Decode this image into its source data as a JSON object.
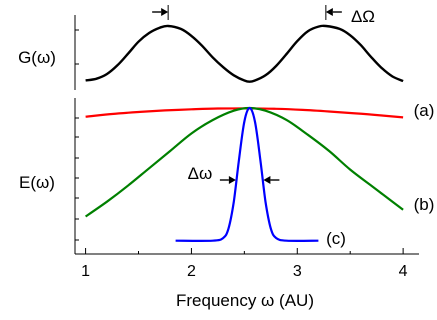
{
  "chart_data": [
    {
      "type": "line",
      "panel": "top",
      "ylabel": "G(ω)",
      "xlim": [
        0.9,
        4.15
      ],
      "ylim": [
        0.0,
        1.0
      ],
      "annotation": "ΔΩ",
      "series": [
        {
          "color": "#000000",
          "x": [
            1.0,
            1.1,
            1.2,
            1.3,
            1.4,
            1.5,
            1.6,
            1.7,
            1.78,
            1.9,
            2.0,
            2.1,
            2.2,
            2.3,
            2.4,
            2.5,
            2.55,
            2.6,
            2.7,
            2.8,
            2.9,
            3.0,
            3.1,
            3.2,
            3.27,
            3.4,
            3.5,
            3.6,
            3.7,
            3.8,
            3.9,
            4.0
          ],
          "values": [
            0.06,
            0.09,
            0.17,
            0.32,
            0.52,
            0.73,
            0.88,
            0.97,
            1.0,
            0.95,
            0.83,
            0.66,
            0.46,
            0.29,
            0.15,
            0.06,
            0.04,
            0.06,
            0.15,
            0.31,
            0.52,
            0.74,
            0.91,
            0.99,
            1.0,
            0.95,
            0.84,
            0.67,
            0.46,
            0.27,
            0.13,
            0.05
          ]
        }
      ]
    },
    {
      "type": "line",
      "panel": "bottom",
      "xlabel": "Frequency ω (AU)",
      "ylabel": "E(ω)",
      "xlim": [
        0.9,
        4.15
      ],
      "xticks": [
        "1",
        "2",
        "3",
        "4"
      ],
      "ylim": [
        0.0,
        1.0
      ],
      "annotation": "Δω",
      "series": [
        {
          "name": "(a)",
          "color": "#ff0000",
          "x": [
            1.0,
            1.25,
            1.5,
            1.75,
            2.0,
            2.25,
            2.55,
            2.8,
            3.05,
            3.3,
            3.55,
            3.8,
            4.0
          ],
          "values": [
            0.935,
            0.955,
            0.97,
            0.982,
            0.99,
            0.996,
            0.997,
            0.994,
            0.986,
            0.974,
            0.96,
            0.944,
            0.93
          ]
        },
        {
          "name": "(b)",
          "color": "#008000",
          "x": [
            1.0,
            1.2,
            1.4,
            1.6,
            1.8,
            2.0,
            2.2,
            2.4,
            2.55,
            2.7,
            2.9,
            3.1,
            3.3,
            3.5,
            3.7,
            3.9,
            4.0
          ],
          "values": [
            0.19,
            0.3,
            0.42,
            0.55,
            0.68,
            0.81,
            0.91,
            0.98,
            1.0,
            0.98,
            0.91,
            0.8,
            0.68,
            0.54,
            0.42,
            0.3,
            0.24
          ]
        },
        {
          "name": "(c)",
          "color": "#0000ff",
          "x": [
            1.85,
            2.2,
            2.3,
            2.35,
            2.4,
            2.45,
            2.5,
            2.55,
            2.6,
            2.65,
            2.7,
            2.75,
            2.8,
            2.9,
            3.2
          ],
          "values": [
            0.01,
            0.01,
            0.03,
            0.1,
            0.3,
            0.62,
            0.9,
            1.0,
            0.9,
            0.62,
            0.3,
            0.1,
            0.03,
            0.01,
            0.01
          ]
        }
      ]
    }
  ]
}
